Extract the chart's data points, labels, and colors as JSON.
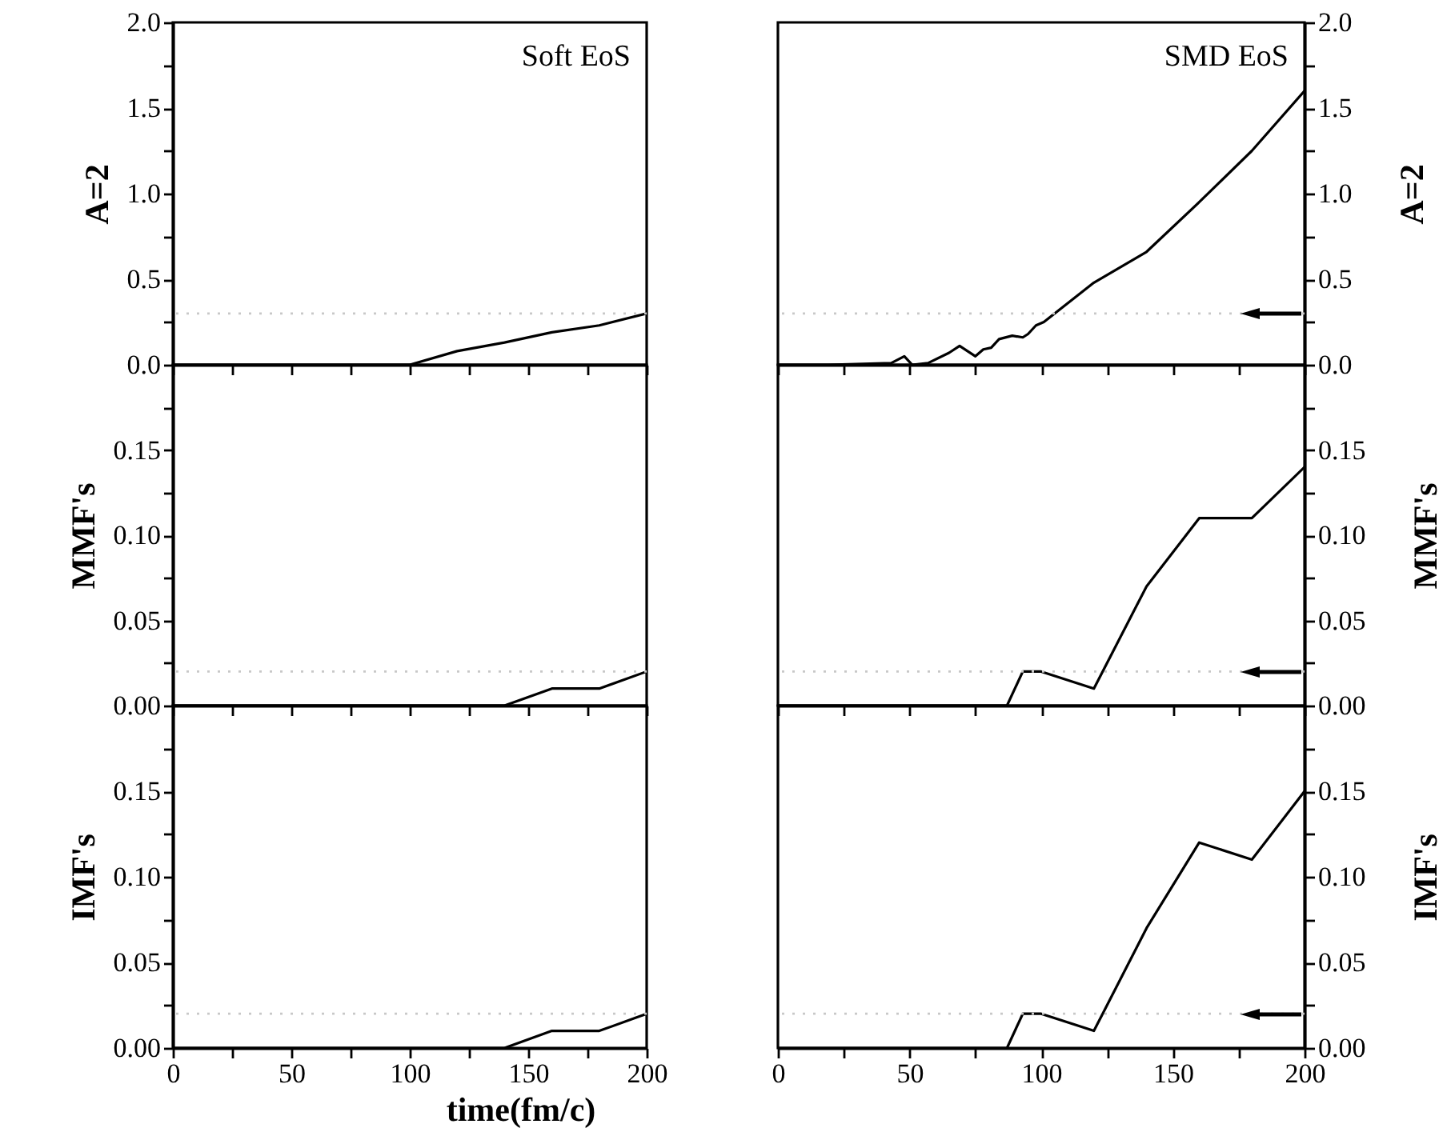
{
  "chart_data": [
    {
      "type": "line",
      "ylabel": "A=2",
      "annotations": [
        "Soft EoS"
      ],
      "x": [
        0,
        20,
        40,
        60,
        80,
        100,
        120,
        140,
        160,
        180,
        200
      ],
      "series": [
        {
          "color": "#000000",
          "values": [
            0,
            0,
            0,
            0,
            0,
            0,
            0.08,
            0.13,
            0.19,
            0.23,
            0.3
          ]
        }
      ],
      "xlim": [
        0,
        200
      ],
      "xticks": [
        {
          "value": 0,
          "label": null
        },
        {
          "value": 25,
          "label": null
        },
        {
          "value": 50,
          "label": null
        },
        {
          "value": 75,
          "label": null
        },
        {
          "value": 100,
          "label": null
        },
        {
          "value": 125,
          "label": null
        },
        {
          "value": 150,
          "label": null
        },
        {
          "value": 175,
          "label": null
        },
        {
          "value": 200,
          "label": null
        }
      ],
      "ylim": [
        0,
        2
      ],
      "yticks": [
        {
          "value": 0,
          "label": "0.0"
        },
        {
          "value": 0.25,
          "label": null
        },
        {
          "value": 0.5,
          "label": "0.5"
        },
        {
          "value": 0.75,
          "label": null
        },
        {
          "value": 1,
          "label": "1.0"
        },
        {
          "value": 1.25,
          "label": null
        },
        {
          "value": 1.5,
          "label": "1.5"
        },
        {
          "value": 1.75,
          "label": null
        },
        {
          "value": 2,
          "label": "2.0"
        }
      ],
      "ref_lines": [
        {
          "axis": "y",
          "value": 0.3,
          "color": "#c8c8c8",
          "line_style": "dotted"
        }
      ],
      "tick_labels": "y",
      "line_style": "solid",
      "marker": "none"
    },
    {
      "type": "line",
      "ylabel": "A=2",
      "annotations": [
        "SMD EoS"
      ],
      "x": [
        0,
        19,
        43,
        48,
        51,
        57,
        65,
        69,
        75,
        78,
        81,
        84,
        89,
        93,
        95,
        98,
        101,
        120,
        140,
        160,
        180,
        200
      ],
      "series": [
        {
          "color": "#000000",
          "values": [
            0,
            0,
            0.01,
            0.05,
            0,
            0.01,
            0.07,
            0.11,
            0.05,
            0.09,
            0.1,
            0.15,
            0.17,
            0.16,
            0.18,
            0.23,
            0.25,
            0.48,
            0.66,
            0.95,
            1.25,
            1.6
          ]
        }
      ],
      "xlim": [
        0,
        200
      ],
      "xticks": [
        {
          "value": 0,
          "label": null
        },
        {
          "value": 25,
          "label": null
        },
        {
          "value": 50,
          "label": null
        },
        {
          "value": 75,
          "label": null
        },
        {
          "value": 100,
          "label": null
        },
        {
          "value": 125,
          "label": null
        },
        {
          "value": 150,
          "label": null
        },
        {
          "value": 175,
          "label": null
        },
        {
          "value": 200,
          "label": null
        }
      ],
      "ylim": [
        0,
        2
      ],
      "yticks": [
        {
          "value": 0,
          "label": "0.0"
        },
        {
          "value": 0.25,
          "label": null
        },
        {
          "value": 0.5,
          "label": "0.5"
        },
        {
          "value": 0.75,
          "label": null
        },
        {
          "value": 1,
          "label": "1.0"
        },
        {
          "value": 1.25,
          "label": null
        },
        {
          "value": 1.5,
          "label": "1.5"
        },
        {
          "value": 1.75,
          "label": null
        },
        {
          "value": 2,
          "label": "2.0"
        }
      ],
      "ref_lines": [
        {
          "axis": "y",
          "value": 0.3,
          "color": "#c8c8c8",
          "line_style": "dotted"
        }
      ],
      "tick_labels": "y",
      "line_style": "solid",
      "marker": "none"
    },
    {
      "type": "line",
      "ylabel": "MMF's",
      "x": [
        0,
        20,
        40,
        60,
        80,
        100,
        120,
        140,
        160,
        180,
        200
      ],
      "series": [
        {
          "color": "#000000",
          "values": [
            0,
            0,
            0,
            0,
            0,
            0,
            0,
            0,
            0.01,
            0.01,
            0.02
          ]
        }
      ],
      "xlim": [
        0,
        200
      ],
      "xticks": [
        {
          "value": 0,
          "label": null
        },
        {
          "value": 25,
          "label": null
        },
        {
          "value": 50,
          "label": null
        },
        {
          "value": 75,
          "label": null
        },
        {
          "value": 100,
          "label": null
        },
        {
          "value": 125,
          "label": null
        },
        {
          "value": 150,
          "label": null
        },
        {
          "value": 175,
          "label": null
        },
        {
          "value": 200,
          "label": null
        }
      ],
      "ylim": [
        0,
        0.2
      ],
      "yticks": [
        {
          "value": 0,
          "label": "0.00"
        },
        {
          "value": 0.025,
          "label": null
        },
        {
          "value": 0.05,
          "label": "0.05"
        },
        {
          "value": 0.075,
          "label": null
        },
        {
          "value": 0.1,
          "label": "0.10"
        },
        {
          "value": 0.125,
          "label": null
        },
        {
          "value": 0.15,
          "label": "0.15"
        },
        {
          "value": 0.175,
          "label": null
        }
      ],
      "ref_lines": [
        {
          "axis": "y",
          "value": 0.02,
          "color": "#c8c8c8",
          "line_style": "dotted"
        }
      ],
      "tick_labels": "y",
      "line_style": "solid",
      "marker": "none"
    },
    {
      "type": "line",
      "ylabel": "MMF's",
      "x": [
        0,
        87,
        93,
        100,
        120,
        140,
        160,
        180,
        200
      ],
      "series": [
        {
          "color": "#000000",
          "values": [
            0,
            0,
            0.02,
            0.02,
            0.01,
            0.07,
            0.11,
            0.11,
            0.14
          ]
        }
      ],
      "xlim": [
        0,
        200
      ],
      "xticks": [
        {
          "value": 0,
          "label": null
        },
        {
          "value": 25,
          "label": null
        },
        {
          "value": 50,
          "label": null
        },
        {
          "value": 75,
          "label": null
        },
        {
          "value": 100,
          "label": null
        },
        {
          "value": 125,
          "label": null
        },
        {
          "value": 150,
          "label": null
        },
        {
          "value": 175,
          "label": null
        },
        {
          "value": 200,
          "label": null
        }
      ],
      "ylim": [
        0,
        0.2
      ],
      "yticks": [
        {
          "value": 0,
          "label": "0.00"
        },
        {
          "value": 0.025,
          "label": null
        },
        {
          "value": 0.05,
          "label": "0.05"
        },
        {
          "value": 0.075,
          "label": null
        },
        {
          "value": 0.1,
          "label": "0.10"
        },
        {
          "value": 0.125,
          "label": null
        },
        {
          "value": 0.15,
          "label": "0.15"
        },
        {
          "value": 0.175,
          "label": null
        }
      ],
      "ref_lines": [
        {
          "axis": "y",
          "value": 0.02,
          "color": "#c8c8c8",
          "line_style": "dotted"
        }
      ],
      "tick_labels": "y",
      "line_style": "solid",
      "marker": "none"
    },
    {
      "type": "line",
      "ylabel": "IMF's",
      "xlabel": "time(fm/c)",
      "x": [
        0,
        20,
        40,
        60,
        80,
        100,
        120,
        140,
        160,
        180,
        200
      ],
      "series": [
        {
          "color": "#000000",
          "values": [
            0,
            0,
            0,
            0,
            0,
            0,
            0,
            0,
            0.01,
            0.01,
            0.02
          ]
        }
      ],
      "xlim": [
        0,
        200
      ],
      "xticks": [
        0,
        {
          "value": 25,
          "label": null
        },
        50,
        {
          "value": 75,
          "label": null
        },
        100,
        {
          "value": 125,
          "label": null
        },
        150,
        {
          "value": 175,
          "label": null
        },
        200
      ],
      "ylim": [
        0,
        0.2
      ],
      "yticks": [
        {
          "value": 0,
          "label": "0.00"
        },
        {
          "value": 0.025,
          "label": null
        },
        {
          "value": 0.05,
          "label": "0.05"
        },
        {
          "value": 0.075,
          "label": null
        },
        {
          "value": 0.1,
          "label": "0.10"
        },
        {
          "value": 0.125,
          "label": null
        },
        {
          "value": 0.15,
          "label": "0.15"
        },
        {
          "value": 0.175,
          "label": null
        }
      ],
      "ref_lines": [
        {
          "axis": "y",
          "value": 0.02,
          "color": "#c8c8c8",
          "line_style": "dotted"
        }
      ],
      "line_style": "solid",
      "marker": "none"
    },
    {
      "type": "line",
      "ylabel": "IMF's",
      "x": [
        0,
        87,
        93,
        100,
        120,
        140,
        160,
        180,
        200
      ],
      "series": [
        {
          "color": "#000000",
          "values": [
            0,
            0,
            0.02,
            0.02,
            0.01,
            0.07,
            0.12,
            0.11,
            0.15
          ]
        }
      ],
      "xlim": [
        0,
        200
      ],
      "xticks": [
        0,
        {
          "value": 25,
          "label": null
        },
        50,
        {
          "value": 75,
          "label": null
        },
        100,
        {
          "value": 125,
          "label": null
        },
        150,
        {
          "value": 175,
          "label": null
        },
        200
      ],
      "ylim": [
        0,
        0.2
      ],
      "yticks": [
        {
          "value": 0,
          "label": "0.00"
        },
        {
          "value": 0.025,
          "label": null
        },
        {
          "value": 0.05,
          "label": "0.05"
        },
        {
          "value": 0.075,
          "label": null
        },
        {
          "value": 0.1,
          "label": "0.10"
        },
        {
          "value": 0.125,
          "label": null
        },
        {
          "value": 0.15,
          "label": "0.15"
        },
        {
          "value": 0.175,
          "label": null
        }
      ],
      "ref_lines": [
        {
          "axis": "y",
          "value": 0.02,
          "color": "#c8c8c8",
          "line_style": "dotted"
        }
      ],
      "line_style": "solid",
      "marker": "none"
    }
  ]
}
